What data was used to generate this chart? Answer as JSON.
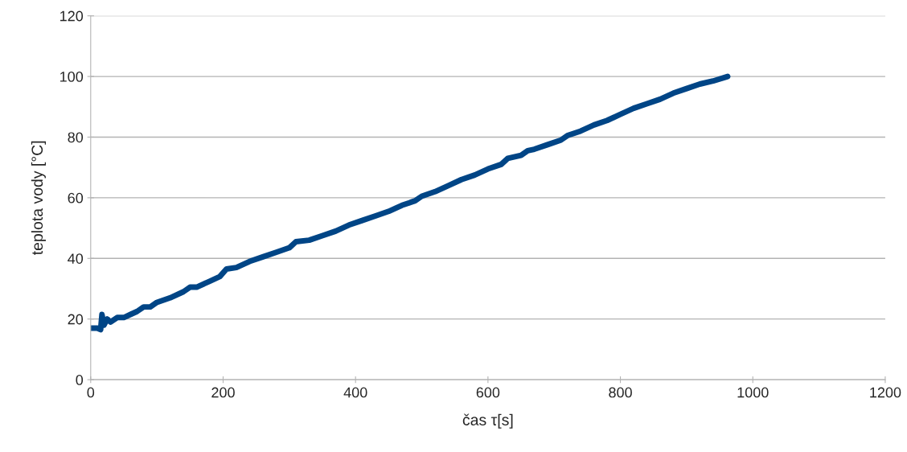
{
  "chart_data": {
    "type": "line",
    "xlabel": "čas τ[s]",
    "ylabel": "teplota vody [°C]",
    "xlim": [
      0,
      1200
    ],
    "xticks": [
      0,
      200,
      400,
      600,
      800,
      1000,
      1200
    ],
    "ylim": [
      0,
      120
    ],
    "yticks": [
      0,
      20,
      40,
      60,
      80,
      100,
      120
    ],
    "grid": "y",
    "line_style": "solid",
    "series": [
      {
        "color": "#004586",
        "x": [
          0,
          10,
          15,
          17,
          20,
          25,
          30,
          40,
          50,
          60,
          70,
          80,
          90,
          100,
          120,
          140,
          150,
          160,
          180,
          195,
          205,
          220,
          240,
          260,
          280,
          300,
          310,
          330,
          350,
          370,
          390,
          410,
          430,
          450,
          470,
          490,
          500,
          520,
          540,
          560,
          580,
          600,
          620,
          630,
          650,
          660,
          670,
          690,
          710,
          720,
          740,
          760,
          780,
          800,
          820,
          840,
          860,
          880,
          900,
          920,
          940,
          962
        ],
        "values": [
          17,
          17,
          16.5,
          21.5,
          18,
          20,
          19,
          20.5,
          20.5,
          21.5,
          22.5,
          24,
          24,
          25.5,
          27,
          29,
          30.5,
          30.5,
          32.5,
          34,
          36.5,
          37,
          39,
          40.5,
          42,
          43.5,
          45.5,
          46,
          47.5,
          49,
          51,
          52.5,
          54,
          55.5,
          57.5,
          59,
          60.5,
          62,
          64,
          66,
          67.5,
          69.5,
          71,
          73,
          74,
          75.5,
          76,
          77.5,
          79,
          80.5,
          82,
          84,
          85.5,
          87.5,
          89.5,
          91,
          92.5,
          94.5,
          96,
          97.5,
          98.5,
          100
        ]
      }
    ]
  }
}
